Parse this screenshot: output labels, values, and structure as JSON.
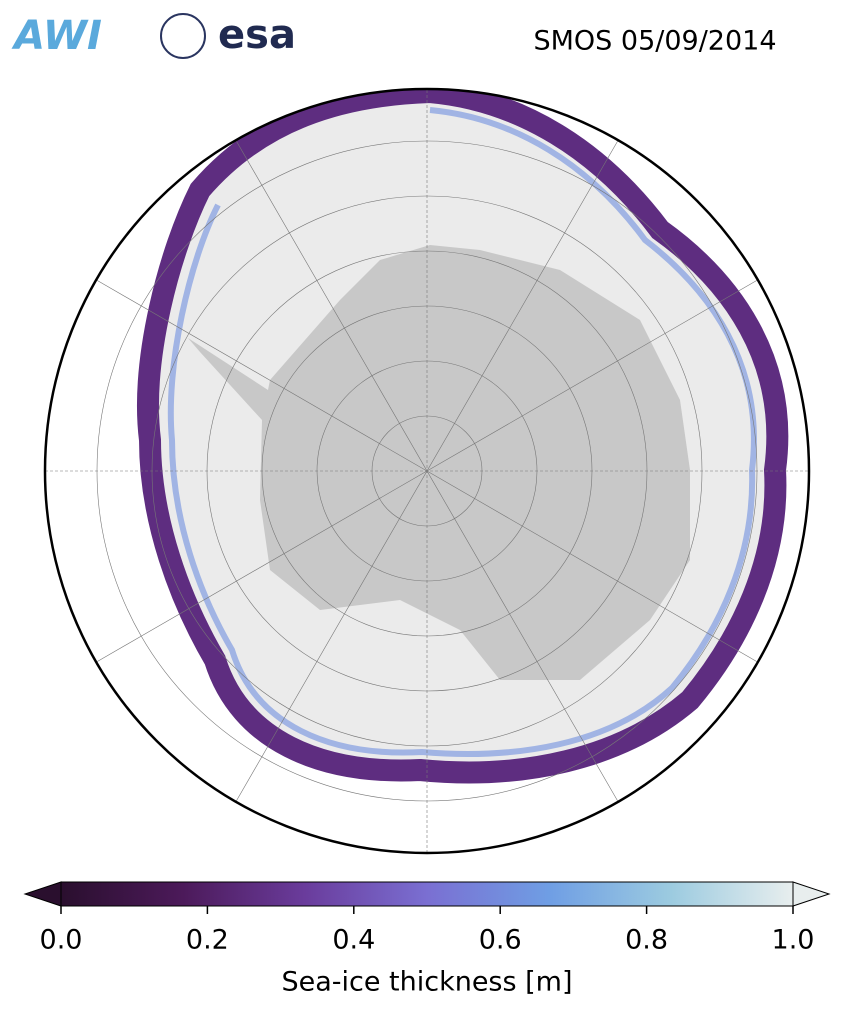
{
  "header": {
    "logo_left": "AWI",
    "logo_right": "esa",
    "title": "SMOS 05/09/2014"
  },
  "colorbar": {
    "label": "Sea-ice thickness [m]",
    "range": [
      0,
      1
    ],
    "ticks": [
      {
        "value": 0,
        "label": "0.0"
      },
      {
        "value": 0.2,
        "label": "0.2"
      },
      {
        "value": 0.4,
        "label": "0.4"
      },
      {
        "value": 0.6,
        "label": "0.6"
      },
      {
        "value": 0.8,
        "label": "0.8"
      },
      {
        "value": 1,
        "label": "1.0"
      }
    ],
    "colors": [
      "#2a0f2e",
      "#4c1a5a",
      "#6a3c9c",
      "#7a6fd2",
      "#6f9ee4",
      "#9ccbe0",
      "#e8eeee"
    ]
  }
}
